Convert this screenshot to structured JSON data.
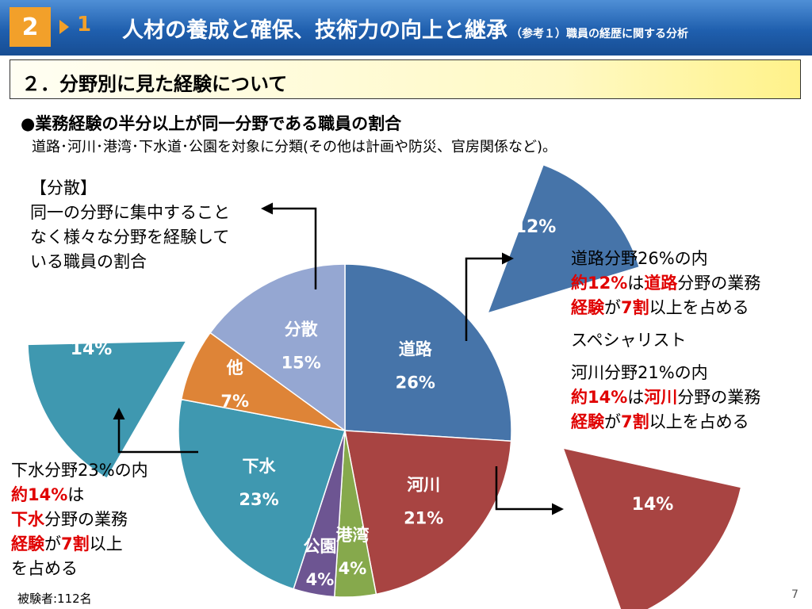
{
  "header": {
    "number": "2",
    "subnum": "1",
    "title": "人材の養成と確保、技術力の向上と継承",
    "note": "（参考１）職員の経歴に関する分析"
  },
  "section": {
    "title": "２．分野別に見た経験について"
  },
  "bullet": "●業務経験の半分以上が同一分野である職員の割合",
  "description": "道路･河川･港湾･下水道･公園を対象に分類(その他は計画や防災、官房関係など)。",
  "dispersion_note": {
    "heading": "【分散】",
    "lines": [
      "同一の分野に集中すること",
      "なく様々な分野を経験して",
      "いる職員の割合"
    ]
  },
  "right_note": {
    "road_intro": "道路分野26%の内",
    "road_p1_red": "約12%",
    "road_p1_mid": "は",
    "road_p1_red2": "道路",
    "road_p1_end": "分野の業務",
    "road_p2_red": "経験",
    "road_p2_mid": "が",
    "road_p2_red2": "7割",
    "road_p2_end": "以上を占める",
    "specialist": "スペシャリスト",
    "river_intro": "河川分野21%の内",
    "river_p1_red": "約14%",
    "river_p1_mid": "は",
    "river_p1_red2": "河川",
    "river_p1_end": "分野の業務",
    "river_p2_red": "経験",
    "river_p2_mid": "が",
    "river_p2_red2": "7割",
    "river_p2_end": "以上を占める"
  },
  "sewer_note": {
    "intro": "下水分野23%の内",
    "l2_red": "約14%",
    "l2_end": "は",
    "l3_red": "下水",
    "l3_end": "分野の業務",
    "l4_red": "経験",
    "l4_mid": "が",
    "l4_red2": "7割",
    "l4_end": "以上",
    "l5": "を占める"
  },
  "footer": {
    "respondents": "被験者:112名",
    "page": "7"
  },
  "chart_data": {
    "type": "pie",
    "title": "",
    "slices": [
      {
        "label": "道路",
        "value": 26,
        "value_label": "26%",
        "color": "#4674a9"
      },
      {
        "label": "河川",
        "value": 21,
        "value_label": "21%",
        "color": "#a84442"
      },
      {
        "label": "港湾",
        "value": 4,
        "value_label": "4%",
        "color": "#86a94c"
      },
      {
        "label": "公園",
        "value": 4,
        "value_label": "4%",
        "color": "#6d5592"
      },
      {
        "label": "下水",
        "value": 23,
        "value_label": "23%",
        "color": "#3f98b0"
      },
      {
        "label": "他",
        "value": 7,
        "value_label": "7%",
        "color": "#de8437"
      },
      {
        "label": "分散",
        "value": 15,
        "value_label": "15%",
        "color": "#95a7d2"
      }
    ],
    "callouts": [
      {
        "field": "道路",
        "value": 12,
        "value_label": "12%",
        "color": "#4674a9"
      },
      {
        "field": "下水",
        "value": 14,
        "value_label": "14%",
        "color": "#3f98b0"
      },
      {
        "field": "河川",
        "value": 14,
        "value_label": "14%",
        "color": "#a84442"
      }
    ]
  }
}
